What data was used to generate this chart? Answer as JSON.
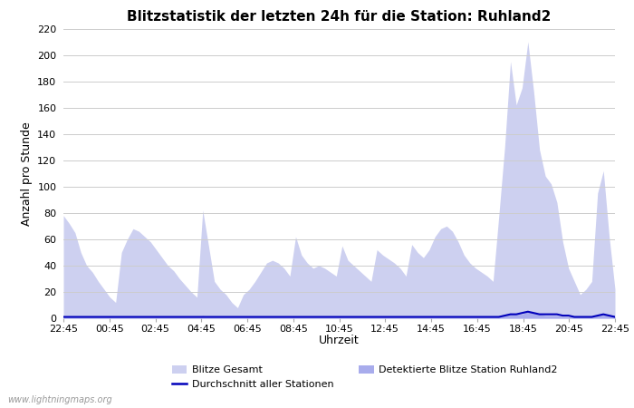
{
  "title": "Blitzstatistik der letzten 24h für die Station: Ruhland2",
  "xlabel": "Uhrzeit",
  "ylabel": "Anzahl pro Stunde",
  "xlim_labels": [
    "22:45",
    "00:45",
    "02:45",
    "04:45",
    "06:45",
    "08:45",
    "10:45",
    "12:45",
    "14:45",
    "16:45",
    "18:45",
    "20:45",
    "22:45"
  ],
  "ylim": [
    0,
    220
  ],
  "yticks": [
    0,
    20,
    40,
    60,
    80,
    100,
    120,
    140,
    160,
    180,
    200,
    220
  ],
  "background_color": "#ffffff",
  "grid_color": "#cccccc",
  "fill_gesamt_color": "#cdd0f0",
  "fill_station_color": "#a8acec",
  "avg_line_color": "#0000bb",
  "watermark": "www.lightningmaps.org",
  "legend_items": [
    "Blitze Gesamt",
    "Detektierte Blitze Station Ruhland2",
    "Durchschnitt aller Stationen"
  ],
  "blitze_gesamt": [
    78,
    72,
    65,
    50,
    40,
    35,
    28,
    22,
    16,
    12,
    50,
    60,
    68,
    66,
    62,
    58,
    52,
    46,
    40,
    36,
    30,
    25,
    20,
    16,
    82,
    55,
    28,
    22,
    18,
    12,
    8,
    18,
    22,
    28,
    35,
    42,
    44,
    42,
    38,
    32,
    62,
    48,
    42,
    38,
    40,
    38,
    35,
    32,
    55,
    44,
    40,
    36,
    32,
    28,
    52,
    48,
    45,
    42,
    38,
    32,
    56,
    50,
    46,
    52,
    62,
    68,
    70,
    66,
    58,
    48,
    42,
    38,
    35,
    32,
    28,
    78,
    130,
    195,
    162,
    175,
    210,
    172,
    128,
    108,
    102,
    88,
    58,
    38,
    28,
    18,
    22,
    28,
    95,
    112,
    62,
    22
  ],
  "blitze_station": [
    2,
    1,
    1,
    1,
    1,
    1,
    1,
    1,
    1,
    1,
    1,
    1,
    1,
    1,
    1,
    1,
    1,
    1,
    1,
    1,
    1,
    1,
    1,
    1,
    2,
    1,
    1,
    1,
    1,
    1,
    1,
    1,
    1,
    1,
    1,
    1,
    1,
    1,
    1,
    1,
    1,
    1,
    1,
    1,
    1,
    1,
    1,
    1,
    1,
    1,
    1,
    1,
    1,
    1,
    1,
    1,
    1,
    1,
    1,
    1,
    1,
    1,
    1,
    1,
    1,
    1,
    1,
    1,
    1,
    1,
    1,
    1,
    1,
    1,
    1,
    2,
    3,
    4,
    3,
    3,
    5,
    4,
    3,
    2,
    2,
    2,
    1,
    1,
    1,
    1,
    1,
    1,
    2,
    3,
    2,
    1
  ],
  "avg_line": [
    1,
    1,
    1,
    1,
    1,
    1,
    1,
    1,
    1,
    1,
    1,
    1,
    1,
    1,
    1,
    1,
    1,
    1,
    1,
    1,
    1,
    1,
    1,
    1,
    1,
    1,
    1,
    1,
    1,
    1,
    1,
    1,
    1,
    1,
    1,
    1,
    1,
    1,
    1,
    1,
    1,
    1,
    1,
    1,
    1,
    1,
    1,
    1,
    1,
    1,
    1,
    1,
    1,
    1,
    1,
    1,
    1,
    1,
    1,
    1,
    1,
    1,
    1,
    1,
    1,
    1,
    1,
    1,
    1,
    1,
    1,
    1,
    1,
    1,
    1,
    1,
    2,
    3,
    3,
    4,
    5,
    4,
    3,
    3,
    3,
    3,
    2,
    2,
    1,
    1,
    1,
    1,
    2,
    3,
    2,
    1
  ]
}
